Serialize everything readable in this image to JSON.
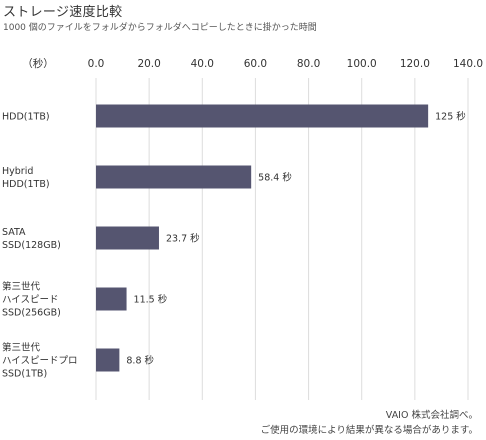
{
  "header": {
    "title": "ストレージ速度比較",
    "subtitle": "1000 個のファイルをフォルダからフォルダへコピーしたときに掛かった時間"
  },
  "footnote": {
    "line1": "VAIO 株式会社調べ。",
    "line2": "ご使用の環境により結果が異なる場合があります。"
  },
  "colors": {
    "bar": "#555570",
    "grid": "#dddddd",
    "axis_text": "#333333"
  },
  "chart_data": {
    "type": "bar",
    "orientation": "horizontal",
    "unit_label": "（秒）",
    "xlim": [
      0,
      140
    ],
    "x_ticks": [
      "0.0",
      "20.0",
      "40.0",
      "60.0",
      "80.0",
      "100.0",
      "120.0",
      "140.0"
    ],
    "x_tick_values": [
      0,
      20,
      40,
      60,
      80,
      100,
      120,
      140
    ],
    "grid": true,
    "categories": [
      [
        "HDD(1TB)"
      ],
      [
        "Hybrid",
        "HDD(1TB)"
      ],
      [
        "SATA",
        "SSD(128GB)"
      ],
      [
        "第三世代",
        "ハイスピード",
        "SSD(256GB)"
      ],
      [
        "第三世代",
        "ハイスピードプロ",
        "SSD(1TB)"
      ]
    ],
    "values": [
      125,
      58.4,
      23.7,
      11.5,
      8.8
    ],
    "data_labels": [
      "125 秒",
      "58.4 秒",
      "23.7 秒",
      "11.5 秒",
      "8.8 秒"
    ]
  }
}
